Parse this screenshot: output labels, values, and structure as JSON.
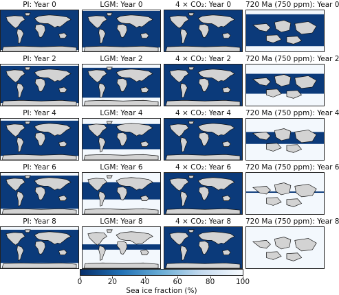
{
  "columns": [
    {
      "id": "pi",
      "name": "PI"
    },
    {
      "id": "lgm",
      "name": "LGM"
    },
    {
      "id": "co2",
      "name": "4 × CO₂"
    },
    {
      "id": "ma720",
      "name": "720 Ma (750 ppm)"
    }
  ],
  "years": [
    0,
    2,
    4,
    6,
    8
  ],
  "panel_titles": [
    [
      "PI: Year 0",
      "LGM: Year 0",
      "4 × CO₂: Year 0",
      "720 Ma (750 ppm): Year 0"
    ],
    [
      "PI: Year 2",
      "LGM: Year 2",
      "4 × CO₂: Year 2",
      "720 Ma (750 ppm): Year 2"
    ],
    [
      "PI: Year 4",
      "LGM: Year 4",
      "4 × CO₂: Year 4",
      "720 Ma (750 ppm): Year 4"
    ],
    [
      "PI: Year 6",
      "LGM: Year 6",
      "4 × CO₂: Year 6",
      "720 Ma (750 ppm): Year 6"
    ],
    [
      "PI: Year 8",
      "LGM: Year 8",
      "4 × CO₂: Year 8",
      "720 Ma (750 ppm): Year 8"
    ]
  ],
  "colorbar": {
    "label": "Sea ice fraction (%)",
    "ticks": [
      "0",
      "20",
      "40",
      "60",
      "80",
      "100"
    ],
    "colormap": [
      "#08306b",
      "#2171b5",
      "#6baed6",
      "#c6dbef",
      "#f7fbff"
    ]
  },
  "colors": {
    "ocean": "#0b3a7a",
    "land": "#d3d3d3",
    "ice": "#f3f8fd",
    "coast": "#111111"
  }
}
